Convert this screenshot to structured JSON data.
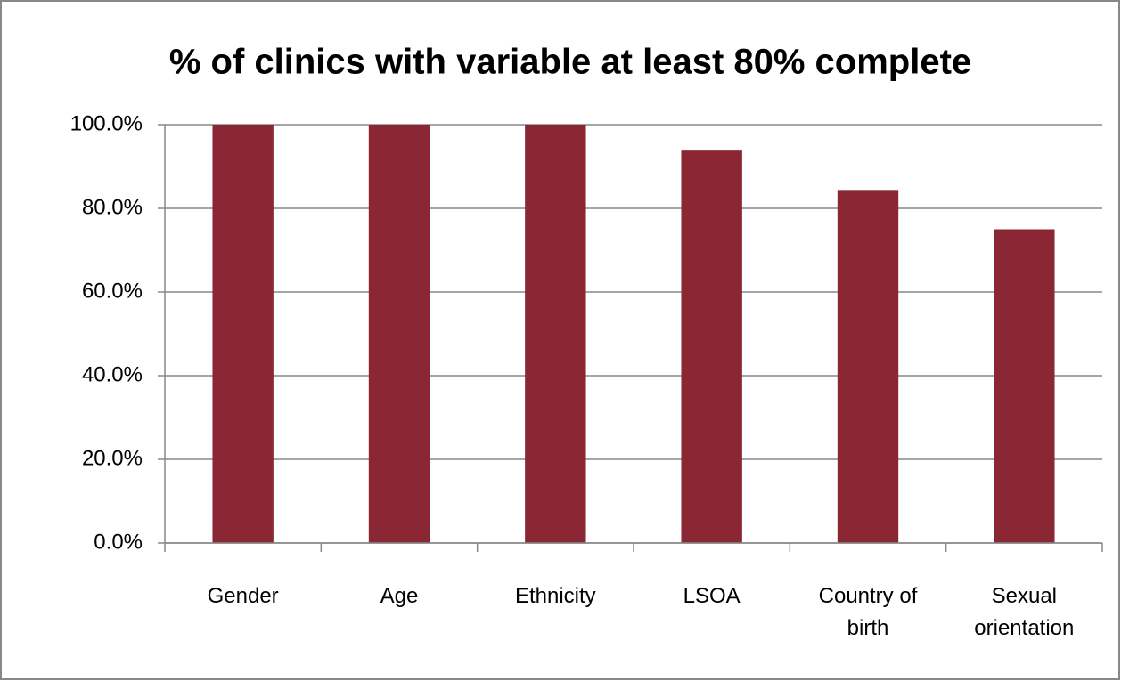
{
  "chart_data": {
    "type": "bar",
    "title": "% of clinics with variable at least 80% complete",
    "categories": [
      "Gender",
      "Age",
      "Ethnicity",
      "LSOA",
      "Country of birth",
      "Sexual orientation"
    ],
    "values": [
      100,
      100,
      100,
      93.8,
      84.4,
      75
    ],
    "color": "#8b2635",
    "ylim": [
      0,
      100
    ],
    "yticks": [
      {
        "value": 0,
        "label": "0.0%"
      },
      {
        "value": 20,
        "label": "20.0%"
      },
      {
        "value": 40,
        "label": "40.0%"
      },
      {
        "value": 60,
        "label": "60.0%"
      },
      {
        "value": 80,
        "label": "80.0%"
      },
      {
        "value": 100,
        "label": "100.0%"
      }
    ],
    "grid": true
  }
}
